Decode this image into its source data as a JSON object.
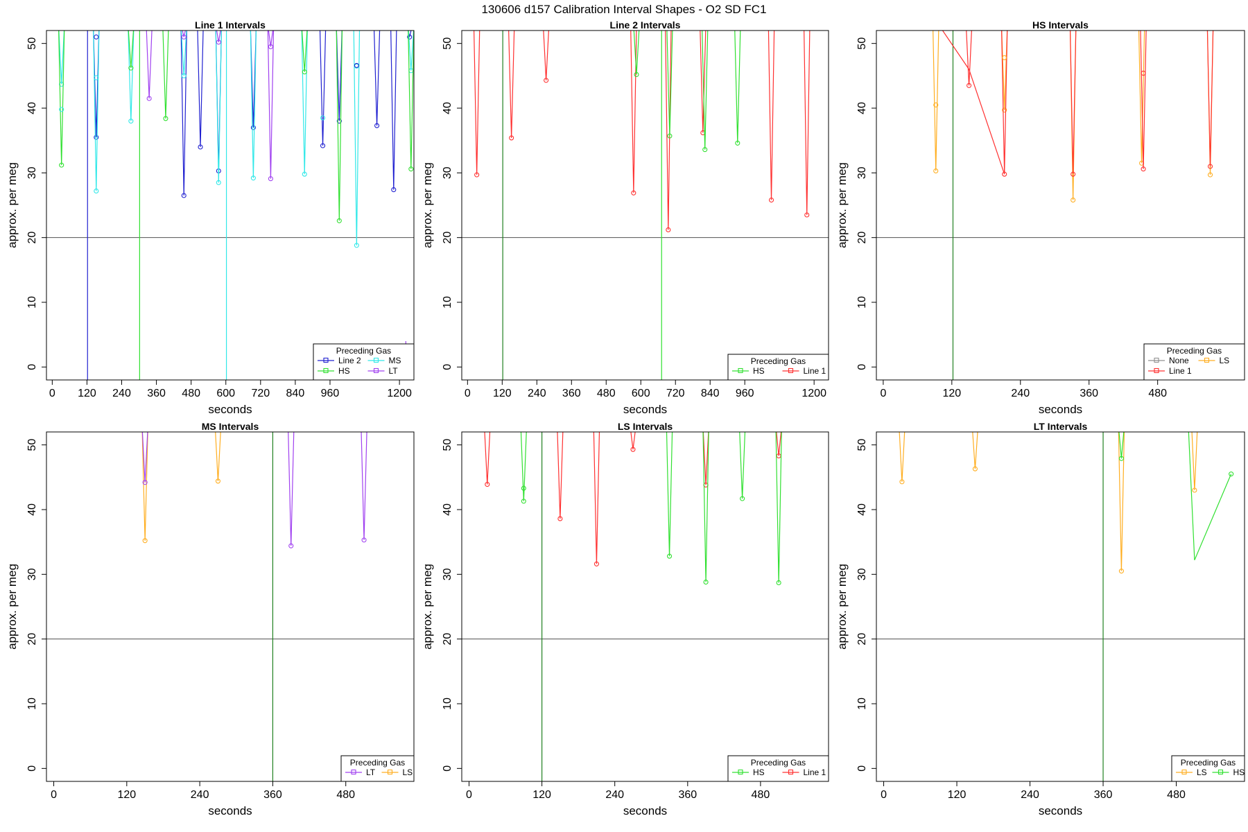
{
  "figure": {
    "title": "130606   d157   Calibration Interval Shapes - O2 SD FC1"
  },
  "colors": {
    "Line 1": "#ff3030",
    "Line 2": "#2020d0",
    "HS": "#30e030",
    "MS": "#30e8e8",
    "LT": "#a040f0",
    "LS": "#ffae20",
    "None": "#909090",
    "ref": "#505050",
    "green_line": "#208020"
  },
  "chart_data": [
    {
      "type": "line",
      "title": "Line 1 Intervals",
      "xlabel": "seconds",
      "ylabel": "approx. per meg",
      "xlim": [
        -20,
        1250
      ],
      "ylim": [
        -2,
        52
      ],
      "xticks": [
        0,
        120,
        240,
        360,
        480,
        600,
        720,
        840,
        960,
        1200
      ],
      "yticks": [
        0,
        10,
        20,
        30,
        40,
        50
      ],
      "hline": 20,
      "legend": {
        "title": "Preceding Gas",
        "position": "bottom-right",
        "entries": [
          "Line 2",
          "MS",
          "HS",
          "LT"
        ],
        "columns": 2
      },
      "vlines": [
        {
          "x": 122,
          "color_key": "Line 2",
          "y2": 52
        },
        {
          "x": 302,
          "color_key": "HS",
          "y2": 52
        },
        {
          "x": 602,
          "color_key": "MS",
          "y2": 52
        },
        {
          "x": 1222,
          "color_key": "LT",
          "y2": 4
        }
      ],
      "series": [
        {
          "name": "Line 2",
          "dips": [
            [
              152,
              35.5
            ],
            [
              455,
              26.5
            ],
            [
              512,
              34
            ],
            [
              575,
              30.3
            ],
            [
              695,
              37
            ],
            [
              935,
              34.2
            ],
            [
              992,
              38
            ],
            [
              1122,
              37.3
            ],
            [
              1180,
              27.4
            ],
            [
              1235,
              51
            ]
          ]
        },
        {
          "name": "MS",
          "dips": [
            [
              32,
              43.7
            ],
            [
              152,
              27.2
            ],
            [
              272,
              38
            ],
            [
              455,
              45
            ],
            [
              575,
              28.5
            ],
            [
              695,
              29.2
            ],
            [
              872,
              29.8
            ],
            [
              1052,
              18.8
            ],
            [
              1240,
              45.8
            ]
          ]
        },
        {
          "name": "HS",
          "dips": [
            [
              32,
              31.2
            ],
            [
              272,
              46.2
            ],
            [
              392,
              38.4
            ],
            [
              872,
              45.6
            ],
            [
              992,
              22.6
            ],
            [
              1240,
              30.6
            ]
          ]
        },
        {
          "name": "LT",
          "dips": [
            [
              335,
              41.5
            ],
            [
              455,
              51
            ],
            [
              575,
              50.2
            ],
            [
              755,
              29.1
            ],
            [
              755,
              49.5
            ]
          ]
        }
      ],
      "markers_only": [
        {
          "series": "MS",
          "points": [
            [
              32,
              39.8
            ],
            [
              152,
              44.7
            ],
            [
              935,
              38.5
            ],
            [
              1052,
              46.5
            ]
          ]
        },
        {
          "series": "Line 2",
          "points": [
            [
              152,
              51
            ],
            [
              1052,
              46.6
            ]
          ]
        }
      ]
    },
    {
      "type": "line",
      "title": "Line 2 Intervals",
      "xlabel": "seconds",
      "ylabel": "approx. per meg",
      "xlim": [
        -20,
        1250
      ],
      "ylim": [
        -2,
        52
      ],
      "xticks": [
        0,
        120,
        240,
        360,
        480,
        600,
        720,
        840,
        960,
        1200
      ],
      "yticks": [
        0,
        10,
        20,
        30,
        40,
        50
      ],
      "hline": 20,
      "legend": {
        "title": "Preceding Gas",
        "position": "bottom-right",
        "entries": [
          "HS",
          "Line 1"
        ],
        "columns": 2
      },
      "vlines": [
        {
          "x": 122,
          "color_key": "green_line",
          "y2": 52
        },
        {
          "x": 672,
          "color_key": "HS",
          "y2": 52
        }
      ],
      "series": [
        {
          "name": "Line 1",
          "dips": [
            [
              32,
              29.7
            ],
            [
              152,
              35.4
            ],
            [
              272,
              44.3
            ],
            [
              575,
              26.9
            ],
            [
              695,
              21.2
            ],
            [
              815,
              36.2
            ],
            [
              1052,
              25.8
            ],
            [
              1175,
              23.5
            ]
          ]
        },
        {
          "name": "HS",
          "dips": [
            [
              585,
              45.2
            ],
            [
              700,
              35.7
            ],
            [
              822,
              33.6
            ],
            [
              935,
              34.6
            ]
          ]
        }
      ],
      "markers_only": []
    },
    {
      "type": "line",
      "title": "HS Intervals",
      "xlabel": "seconds",
      "ylabel": "approx. per meg",
      "xlim": [
        -12,
        632
      ],
      "ylim": [
        -2,
        52
      ],
      "xticks": [
        0,
        120,
        240,
        360,
        480
      ],
      "yticks": [
        0,
        10,
        20,
        30,
        40,
        50
      ],
      "hline": 20,
      "legend": {
        "title": "Preceding Gas",
        "position": "bottom-right",
        "entries": [
          "None",
          "LS",
          "Line 1"
        ],
        "columns": 2
      },
      "vlines": [
        {
          "x": 122,
          "color_key": "green_line",
          "y2": 52
        }
      ],
      "series": [
        {
          "name": "LS",
          "dips": [
            [
              92,
              30.3
            ],
            [
              212,
              39.7
            ],
            [
              332,
              25.8
            ],
            [
              452,
              31.5
            ],
            [
              572,
              29.7
            ]
          ]
        },
        {
          "name": "Line 1",
          "dips": [
            [
              150,
              43.5
            ],
            [
              212,
              29.8
            ],
            [
              332,
              29.8
            ],
            [
              455,
              30.6
            ],
            [
              572,
              31
            ]
          ]
        }
      ],
      "extra_lines": [
        {
          "series": "Line 1",
          "points": [
            [
              100,
              52.5
            ],
            [
              150,
              46
            ],
            [
              212,
              29.8
            ]
          ]
        }
      ],
      "markers_only": [
        {
          "series": "LS",
          "points": [
            [
              92,
              40.5
            ],
            [
              212,
              47.8
            ]
          ]
        },
        {
          "series": "Line 1",
          "points": [
            [
              455,
              45.4
            ]
          ]
        }
      ]
    },
    {
      "type": "line",
      "title": "MS Intervals",
      "xlabel": "seconds",
      "ylabel": "approx. per meg",
      "xlim": [
        -12,
        592
      ],
      "ylim": [
        -2,
        52
      ],
      "xticks": [
        0,
        120,
        240,
        360,
        480
      ],
      "yticks": [
        0,
        10,
        20,
        30,
        40,
        50
      ],
      "hline": 20,
      "legend": {
        "title": "Preceding Gas",
        "position": "bottom-right",
        "entries": [
          "LT",
          "LS"
        ],
        "columns": 2
      },
      "vlines": [
        {
          "x": 360,
          "color_key": "green_line",
          "y2": 52
        }
      ],
      "series": [
        {
          "name": "LS",
          "dips": [
            [
              150,
              35.2
            ],
            [
              270,
              44.4
            ]
          ]
        },
        {
          "name": "LT",
          "dips": [
            [
              150,
              44.2
            ],
            [
              390,
              34.4
            ],
            [
              510,
              35.3
            ]
          ]
        }
      ],
      "markers_only": []
    },
    {
      "type": "line",
      "title": "LS Intervals",
      "xlabel": "seconds",
      "ylabel": "approx. per meg",
      "xlim": [
        -12,
        592
      ],
      "ylim": [
        -2,
        52
      ],
      "xticks": [
        0,
        120,
        240,
        360,
        480
      ],
      "yticks": [
        0,
        10,
        20,
        30,
        40,
        50
      ],
      "hline": 20,
      "legend": {
        "title": "Preceding Gas",
        "position": "bottom-right",
        "entries": [
          "HS",
          "Line 1"
        ],
        "columns": 2
      },
      "vlines": [
        {
          "x": 120,
          "color_key": "green_line",
          "y2": 52
        }
      ],
      "series": [
        {
          "name": "Line 1",
          "dips": [
            [
              30,
              43.9
            ],
            [
              150,
              38.6
            ],
            [
              210,
              31.6
            ],
            [
              270,
              49.3
            ],
            [
              390,
              43.8
            ],
            [
              510,
              48.3
            ]
          ]
        },
        {
          "name": "HS",
          "dips": [
            [
              90,
              41.3
            ],
            [
              330,
              32.8
            ],
            [
              390,
              28.8
            ],
            [
              450,
              41.7
            ],
            [
              510,
              28.7
            ]
          ]
        }
      ],
      "markers_only": [
        {
          "series": "HS",
          "points": [
            [
              90,
              43.3
            ]
          ]
        }
      ]
    },
    {
      "type": "line",
      "title": "LT Intervals",
      "xlabel": "seconds",
      "ylabel": "approx. per meg",
      "xlim": [
        -12,
        592
      ],
      "ylim": [
        -2,
        52
      ],
      "xticks": [
        0,
        120,
        240,
        360,
        480
      ],
      "yticks": [
        0,
        10,
        20,
        30,
        40,
        50
      ],
      "hline": 20,
      "legend": {
        "title": "Preceding Gas",
        "position": "bottom-right",
        "entries": [
          "LS",
          "HS"
        ],
        "columns": 2
      },
      "vlines": [
        {
          "x": 360,
          "color_key": "green_line",
          "y2": 52
        }
      ],
      "series": [
        {
          "name": "LS",
          "dips": [
            [
              30,
              44.3
            ],
            [
              150,
              46.3
            ],
            [
              390,
              30.5
            ],
            [
              510,
              43
            ]
          ]
        },
        {
          "name": "HS",
          "dips": [
            [
              390,
              47.9
            ]
          ]
        }
      ],
      "extra_lines": [
        {
          "series": "HS",
          "points": [
            [
              500,
              52.5
            ],
            [
              510,
              32.2
            ],
            [
              570,
              45.5
            ]
          ]
        }
      ],
      "markers_only": [
        {
          "series": "HS",
          "points": [
            [
              570,
              45.5
            ]
          ]
        }
      ]
    }
  ]
}
